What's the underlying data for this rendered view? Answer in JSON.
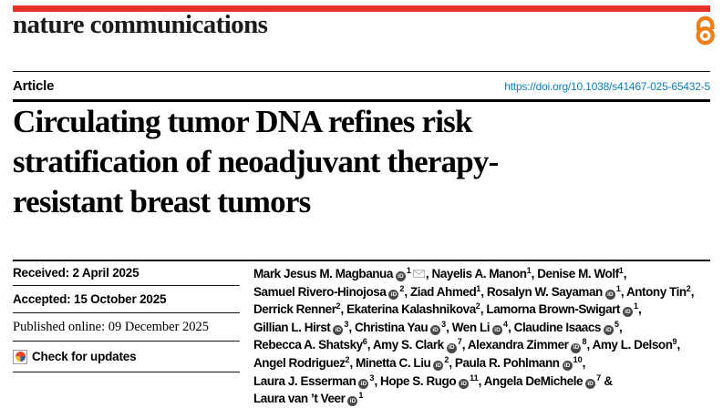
{
  "masthead": {
    "logo": "nature communications"
  },
  "header": {
    "article_label": "Article",
    "doi": "https://doi.org/10.1038/s41467-025-65432-5"
  },
  "title": "Circulating tumor DNA refines risk stratification of neoadjuvant therapy-resistant breast tumors",
  "title_lines": [
    "Circulating tumor DNA refines risk",
    "stratification of neoadjuvant therapy-",
    "resistant breast tumors"
  ],
  "meta": {
    "received": "Received: 2 April 2025",
    "accepted": "Accepted: 15 October 2025",
    "published": "Published online: 09 December 2025",
    "check_updates": "Check for updates"
  },
  "authors": {
    "orcid_icon_text": "iD",
    "lines": [
      [
        "Mark Jesus M. Magbanua",
        {
          "o": 1
        },
        {
          "s": "1"
        },
        {
          "m": 1
        },
        ", Nayelis A. Manon",
        {
          "s": "1"
        },
        ", Denise M. Wolf",
        {
          "s": "1"
        },
        ","
      ],
      [
        "Samuel Rivero-Hinojosa",
        {
          "o": 1
        },
        {
          "s": "2"
        },
        ", Ziad Ahmed",
        {
          "s": "1"
        },
        ", Rosalyn W. Sayaman",
        {
          "o": 1
        },
        {
          "s": "1"
        },
        ", Antony Tin",
        {
          "s": "2"
        },
        ","
      ],
      [
        "Derrick Renner",
        {
          "s": "2"
        },
        ", Ekaterina Kalashnikova",
        {
          "s": "2"
        },
        ", Lamorna Brown-Swigart",
        {
          "o": 1
        },
        {
          "s": "1"
        },
        ","
      ],
      [
        "Gillian L. Hirst",
        {
          "o": 1
        },
        {
          "s": "3"
        },
        ", Christina Yau",
        {
          "o": 1
        },
        {
          "s": "3"
        },
        ", Wen Li",
        {
          "o": 1
        },
        {
          "s": "4"
        },
        ", Claudine Isaacs",
        {
          "o": 1
        },
        {
          "s": "5"
        },
        ","
      ],
      [
        "Rebecca A. Shatsky",
        {
          "s": "6"
        },
        ", Amy S. Clark",
        {
          "o": 1
        },
        {
          "s": "7"
        },
        ", Alexandra Zimmer",
        {
          "o": 1
        },
        {
          "s": "8"
        },
        ", Amy L. Delson",
        {
          "s": "9"
        },
        ","
      ],
      [
        "Angel Rodriguez",
        {
          "s": "2"
        },
        ", Minetta C. Liu",
        {
          "o": 1
        },
        {
          "s": "2"
        },
        ", Paula R. Pohlmann",
        {
          "o": 1
        },
        {
          "s": "10"
        },
        ","
      ],
      [
        "Laura J. Esserman",
        {
          "o": 1
        },
        {
          "s": "3"
        },
        ", Hope S. Rugo",
        {
          "o": 1
        },
        {
          "s": "11"
        },
        ", Angela DeMichele",
        {
          "o": 1
        },
        {
          "s": "7"
        },
        " &"
      ],
      [
        "Laura van ’t Veer",
        {
          "o": 1
        },
        {
          "s": "1"
        }
      ]
    ]
  },
  "colors": {
    "brand_red": "#e5352b",
    "open_access_orange": "#ef7f1a",
    "link_blue": "#0b7dba"
  }
}
